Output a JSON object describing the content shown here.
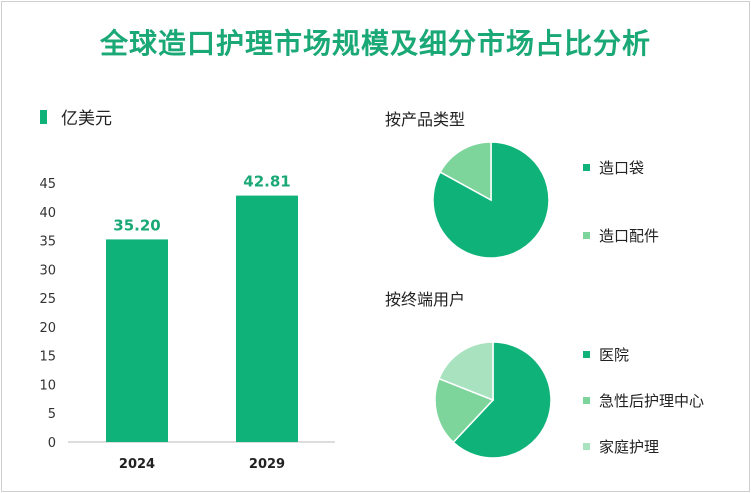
{
  "title": "全球造口护理市场规模及细分市场占比分析",
  "colors": {
    "bar": "#0fb37a",
    "title": "#1aa876",
    "pie": [
      "#0fb37a",
      "#7ed59c",
      "#a8e2bf"
    ]
  },
  "chart_data": [
    {
      "type": "bar",
      "unit_label": "亿美元",
      "categories": [
        "2024",
        "2029"
      ],
      "values": [
        35.2,
        42.81
      ],
      "value_labels": [
        "35.20",
        "42.81"
      ],
      "yticks": [
        "0",
        "5",
        "10",
        "15",
        "20",
        "25",
        "30",
        "35",
        "40",
        "45"
      ],
      "ylim": [
        0,
        45
      ],
      "grid": false
    },
    {
      "type": "pie",
      "title": "按产品类型",
      "labels": [
        "造口袋",
        "造口配件"
      ],
      "values": [
        83,
        17
      ],
      "legend": "right"
    },
    {
      "type": "pie",
      "title": "按终端用户",
      "labels": [
        "医院",
        "急性后护理中心",
        "家庭护理"
      ],
      "values": [
        62,
        19,
        19
      ],
      "legend": "right"
    }
  ]
}
